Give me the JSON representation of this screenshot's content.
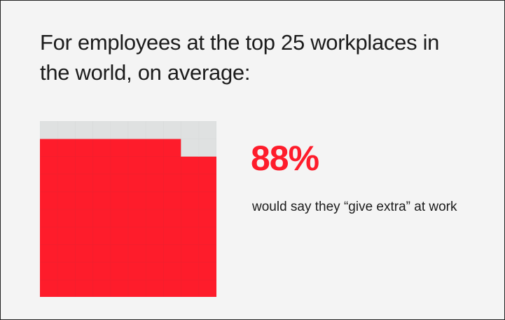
{
  "chart_data": {
    "type": "waffle",
    "title": "For employees at the top 25 workplaces in the world, on average:",
    "values": [
      88
    ],
    "value_labels": [
      "88%"
    ],
    "description": "would say they “give extra” at work",
    "color": "#fe1c2b",
    "empty_color": "#dfe1e1"
  }
}
